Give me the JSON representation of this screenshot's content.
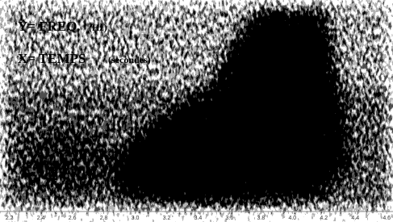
{
  "chart_data": {
    "type": "spectrogram",
    "y_label": {
      "main": "Y= FREQ.",
      "unit": "(Hz)"
    },
    "x_label": {
      "main": "X= TEMPS",
      "unit": "(secondes)"
    },
    "xlim": [
      2.14,
      4.64
    ],
    "xticks": [
      2.2,
      2.4,
      2.6,
      2.8,
      3.0,
      3.2,
      3.4,
      3.6,
      3.8,
      4.0,
      4.2,
      4.4,
      4.6
    ]
  }
}
